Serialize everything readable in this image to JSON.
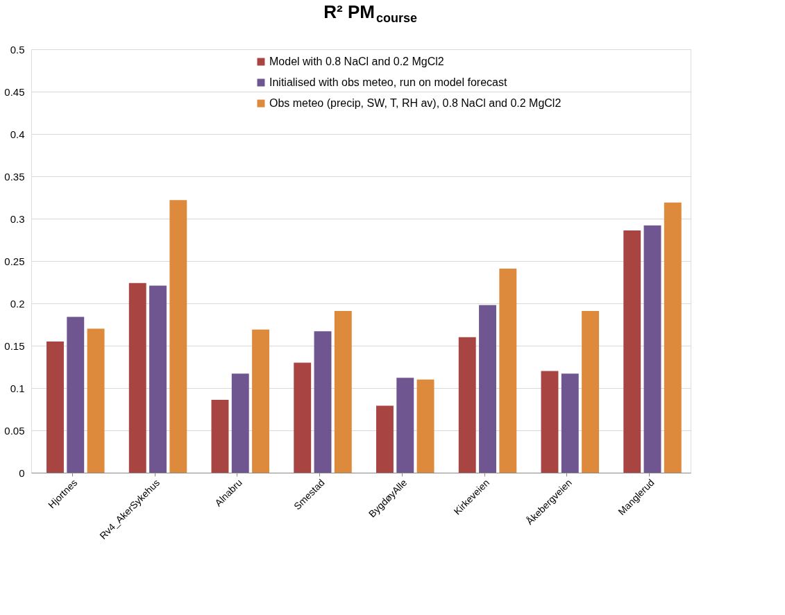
{
  "chart_data": {
    "type": "bar",
    "title": "R² PM$_{course}$",
    "categories": [
      "Hjortnes",
      "Rv4_AkerSykehus",
      "Alnabru",
      "Smestad",
      "BygdøyAlle",
      "Kirkeveien",
      "Åkebergveien",
      "Manglerud"
    ],
    "series": [
      {
        "name": "Model with 0.8 NaCl and 0.2 MgCl2",
        "color": "#a84442",
        "values": [
          0.155,
          0.224,
          0.086,
          0.13,
          0.079,
          0.16,
          0.12,
          0.286
        ]
      },
      {
        "name": "Initialised with obs meteo, run on model forecast",
        "color": "#6f5690",
        "values": [
          0.184,
          0.221,
          0.117,
          0.167,
          0.112,
          0.198,
          0.117,
          0.292
        ]
      },
      {
        "name": "Obs meteo (precip, SW, T, RH av), 0.8 NaCl and 0.2 MgCl2",
        "color": "#dd8a3d",
        "values": [
          0.17,
          0.322,
          0.169,
          0.191,
          0.11,
          0.241,
          0.191,
          0.319
        ]
      }
    ],
    "ylim": [
      0,
      0.5
    ],
    "yticks": [
      0,
      0.05,
      0.1,
      0.15,
      0.2,
      0.25,
      0.3,
      0.35,
      0.4,
      0.45,
      0.5
    ],
    "grid": "y",
    "legend": "top"
  }
}
